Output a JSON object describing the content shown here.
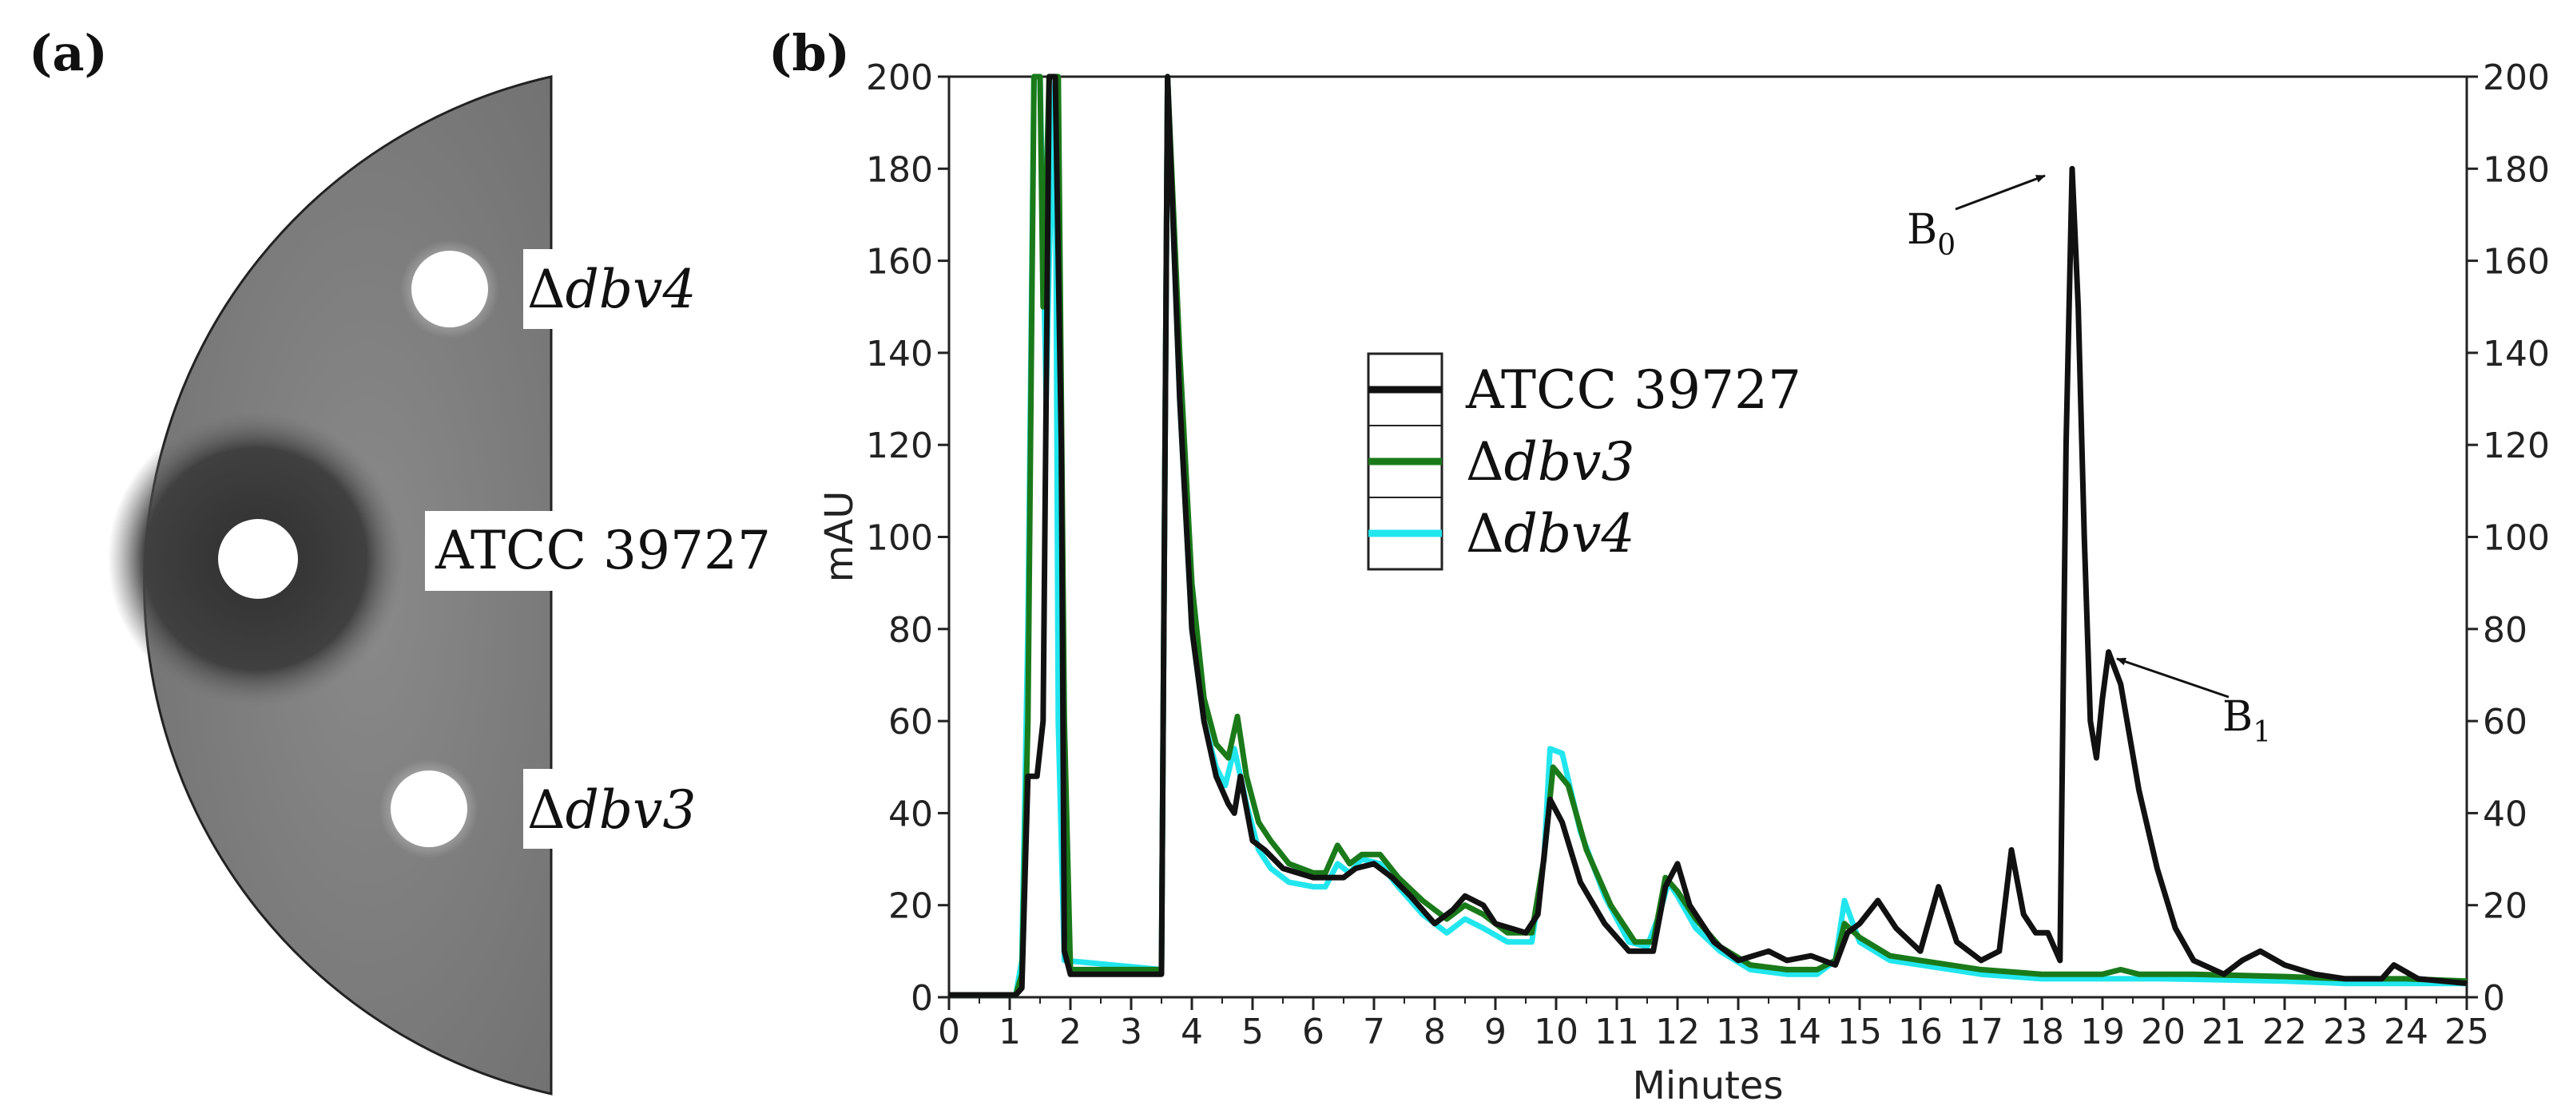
{
  "panel_a": {
    "label": "(a)",
    "wells": [
      {
        "name": "dbv4",
        "prefix": "Δ",
        "italic": "dbv4",
        "zone": "none"
      },
      {
        "name": "ATCC",
        "text": "ATCC 39727",
        "zone": "large"
      },
      {
        "name": "dbv3",
        "prefix": "Δ",
        "italic": "dbv3",
        "zone": "none"
      }
    ]
  },
  "panel_b": {
    "label": "(b)"
  },
  "chart_data": {
    "type": "line",
    "title": "",
    "xlabel": "Minutes",
    "ylabel": "mAU",
    "xlim": [
      0,
      25
    ],
    "ylim": [
      0,
      200
    ],
    "xticks": [
      "0",
      "1",
      "2",
      "3",
      "4",
      "5",
      "6",
      "7",
      "8",
      "9",
      "10",
      "11",
      "12",
      "13",
      "14",
      "15",
      "16",
      "17",
      "18",
      "19",
      "20",
      "21",
      "22",
      "23",
      "24",
      "25"
    ],
    "yticks_left": [
      "0",
      "20",
      "40",
      "60",
      "80",
      "100",
      "120",
      "140",
      "160",
      "180",
      "200"
    ],
    "yticks_right": [
      "0",
      "20",
      "40",
      "60",
      "80",
      "100",
      "120",
      "140",
      "160",
      "180",
      "200"
    ],
    "legend": [
      {
        "label": "ATCC 39727",
        "color": "#111111"
      },
      {
        "label_prefix": "Δ",
        "label_italic": "dbv3",
        "color": "#1a7a1a"
      },
      {
        "label_prefix": "Δ",
        "label_italic": "dbv4",
        "color": "#22e6ee"
      }
    ],
    "annotations": [
      {
        "base": "B",
        "sub": "0",
        "x": 18.4,
        "y": 180
      },
      {
        "base": "B",
        "sub": "1",
        "x": 19.0,
        "y": 75
      }
    ],
    "series": [
      {
        "name": "ATCC 39727",
        "color": "#111111",
        "points": [
          [
            0,
            0.5
          ],
          [
            1.1,
            0.5
          ],
          [
            1.2,
            2
          ],
          [
            1.3,
            48
          ],
          [
            1.45,
            48
          ],
          [
            1.55,
            60
          ],
          [
            1.65,
            200
          ],
          [
            1.75,
            200
          ],
          [
            1.85,
            120
          ],
          [
            1.9,
            10
          ],
          [
            2.0,
            5
          ],
          [
            3.5,
            5
          ],
          [
            3.6,
            200
          ],
          [
            3.8,
            130
          ],
          [
            4.0,
            80
          ],
          [
            4.2,
            60
          ],
          [
            4.4,
            48
          ],
          [
            4.6,
            42
          ],
          [
            4.7,
            40
          ],
          [
            4.8,
            48
          ],
          [
            5.0,
            34
          ],
          [
            5.2,
            32
          ],
          [
            5.5,
            28
          ],
          [
            6.0,
            26
          ],
          [
            6.3,
            26
          ],
          [
            6.5,
            26
          ],
          [
            6.7,
            28
          ],
          [
            7.0,
            29
          ],
          [
            7.3,
            26
          ],
          [
            7.6,
            22
          ],
          [
            8.0,
            16
          ],
          [
            8.3,
            19
          ],
          [
            8.5,
            22
          ],
          [
            8.8,
            20
          ],
          [
            9.0,
            16
          ],
          [
            9.5,
            14
          ],
          [
            9.7,
            18
          ],
          [
            9.9,
            43
          ],
          [
            10.1,
            38
          ],
          [
            10.4,
            25
          ],
          [
            10.8,
            16
          ],
          [
            11.2,
            10
          ],
          [
            11.6,
            10
          ],
          [
            11.8,
            24
          ],
          [
            12.0,
            29
          ],
          [
            12.2,
            20
          ],
          [
            12.6,
            12
          ],
          [
            13.0,
            8
          ],
          [
            13.5,
            10
          ],
          [
            13.8,
            8
          ],
          [
            14.2,
            9
          ],
          [
            14.6,
            7
          ],
          [
            14.8,
            14
          ],
          [
            15.0,
            16
          ],
          [
            15.3,
            21
          ],
          [
            15.6,
            15
          ],
          [
            16.0,
            10
          ],
          [
            16.3,
            24
          ],
          [
            16.6,
            12
          ],
          [
            17.0,
            8
          ],
          [
            17.3,
            10
          ],
          [
            17.5,
            32
          ],
          [
            17.7,
            18
          ],
          [
            17.9,
            14
          ],
          [
            18.1,
            14
          ],
          [
            18.3,
            8
          ],
          [
            18.4,
            120
          ],
          [
            18.5,
            180
          ],
          [
            18.6,
            150
          ],
          [
            18.7,
            100
          ],
          [
            18.8,
            60
          ],
          [
            18.9,
            52
          ],
          [
            19.0,
            65
          ],
          [
            19.1,
            75
          ],
          [
            19.3,
            68
          ],
          [
            19.6,
            45
          ],
          [
            19.9,
            28
          ],
          [
            20.2,
            15
          ],
          [
            20.5,
            8
          ],
          [
            21.0,
            5
          ],
          [
            21.3,
            8
          ],
          [
            21.6,
            10
          ],
          [
            22.0,
            7
          ],
          [
            22.5,
            5
          ],
          [
            23.0,
            4
          ],
          [
            23.6,
            4
          ],
          [
            23.8,
            7
          ],
          [
            24.2,
            4
          ],
          [
            25.0,
            3
          ]
        ]
      },
      {
        "name": "dbv3",
        "color": "#1a7a1a",
        "points": [
          [
            0,
            0.5
          ],
          [
            1.1,
            0.5
          ],
          [
            1.2,
            5
          ],
          [
            1.3,
            60
          ],
          [
            1.4,
            200
          ],
          [
            1.5,
            200
          ],
          [
            1.55,
            150
          ],
          [
            1.65,
            200
          ],
          [
            1.8,
            200
          ],
          [
            1.9,
            60
          ],
          [
            2.0,
            6
          ],
          [
            3.5,
            6
          ],
          [
            3.6,
            200
          ],
          [
            3.8,
            140
          ],
          [
            4.0,
            90
          ],
          [
            4.2,
            65
          ],
          [
            4.4,
            55
          ],
          [
            4.6,
            52
          ],
          [
            4.75,
            61
          ],
          [
            4.9,
            48
          ],
          [
            5.1,
            38
          ],
          [
            5.3,
            34
          ],
          [
            5.6,
            29
          ],
          [
            6.0,
            27
          ],
          [
            6.2,
            27
          ],
          [
            6.4,
            33
          ],
          [
            6.6,
            29
          ],
          [
            6.8,
            31
          ],
          [
            7.1,
            31
          ],
          [
            7.4,
            26
          ],
          [
            7.8,
            21
          ],
          [
            8.2,
            17
          ],
          [
            8.5,
            20
          ],
          [
            8.8,
            18
          ],
          [
            9.2,
            14
          ],
          [
            9.6,
            14
          ],
          [
            9.8,
            30
          ],
          [
            9.95,
            50
          ],
          [
            10.2,
            46
          ],
          [
            10.5,
            32
          ],
          [
            10.9,
            20
          ],
          [
            11.3,
            12
          ],
          [
            11.6,
            12
          ],
          [
            11.8,
            26
          ],
          [
            12.0,
            23
          ],
          [
            12.3,
            17
          ],
          [
            12.7,
            11
          ],
          [
            13.2,
            7
          ],
          [
            13.8,
            6
          ],
          [
            14.3,
            6
          ],
          [
            14.6,
            8
          ],
          [
            14.75,
            16
          ],
          [
            15.0,
            13
          ],
          [
            15.5,
            9
          ],
          [
            16.0,
            8
          ],
          [
            17.0,
            6
          ],
          [
            18.0,
            5
          ],
          [
            18.5,
            5
          ],
          [
            19.0,
            5
          ],
          [
            19.3,
            6
          ],
          [
            19.6,
            5
          ],
          [
            20.5,
            5
          ],
          [
            22.0,
            4.5
          ],
          [
            23.0,
            4
          ],
          [
            24.0,
            4
          ],
          [
            25.0,
            3.5
          ]
        ]
      },
      {
        "name": "dbv4",
        "color": "#22e6ee",
        "points": [
          [
            0,
            0.5
          ],
          [
            1.1,
            0.5
          ],
          [
            1.2,
            8
          ],
          [
            1.3,
            80
          ],
          [
            1.4,
            200
          ],
          [
            1.5,
            200
          ],
          [
            1.6,
            130
          ],
          [
            1.65,
            160
          ],
          [
            1.75,
            200
          ],
          [
            1.8,
            60
          ],
          [
            1.9,
            8
          ],
          [
            3.5,
            6
          ],
          [
            3.6,
            200
          ],
          [
            3.8,
            130
          ],
          [
            4.0,
            80
          ],
          [
            4.2,
            60
          ],
          [
            4.4,
            50
          ],
          [
            4.55,
            46
          ],
          [
            4.7,
            54
          ],
          [
            4.9,
            42
          ],
          [
            5.1,
            32
          ],
          [
            5.3,
            28
          ],
          [
            5.6,
            25
          ],
          [
            6.0,
            24
          ],
          [
            6.2,
            24
          ],
          [
            6.4,
            29
          ],
          [
            6.6,
            27
          ],
          [
            6.8,
            30
          ],
          [
            7.1,
            29
          ],
          [
            7.4,
            24
          ],
          [
            7.8,
            18
          ],
          [
            8.2,
            14
          ],
          [
            8.5,
            17
          ],
          [
            8.8,
            15
          ],
          [
            9.2,
            12
          ],
          [
            9.6,
            12
          ],
          [
            9.8,
            30
          ],
          [
            9.9,
            54
          ],
          [
            10.1,
            53
          ],
          [
            10.4,
            36
          ],
          [
            10.8,
            22
          ],
          [
            11.2,
            12
          ],
          [
            11.5,
            11
          ],
          [
            11.7,
            18
          ],
          [
            11.85,
            25
          ],
          [
            12.0,
            22
          ],
          [
            12.3,
            15
          ],
          [
            12.7,
            10
          ],
          [
            13.2,
            6
          ],
          [
            13.8,
            5
          ],
          [
            14.3,
            5
          ],
          [
            14.6,
            8
          ],
          [
            14.75,
            21
          ],
          [
            15.0,
            12
          ],
          [
            15.5,
            8
          ],
          [
            16.0,
            7
          ],
          [
            17.0,
            5
          ],
          [
            18.0,
            4
          ],
          [
            19.0,
            4
          ],
          [
            20.0,
            4
          ],
          [
            22.0,
            3.5
          ],
          [
            23.0,
            3
          ],
          [
            24.0,
            3
          ],
          [
            25.0,
            3
          ]
        ]
      }
    ]
  }
}
